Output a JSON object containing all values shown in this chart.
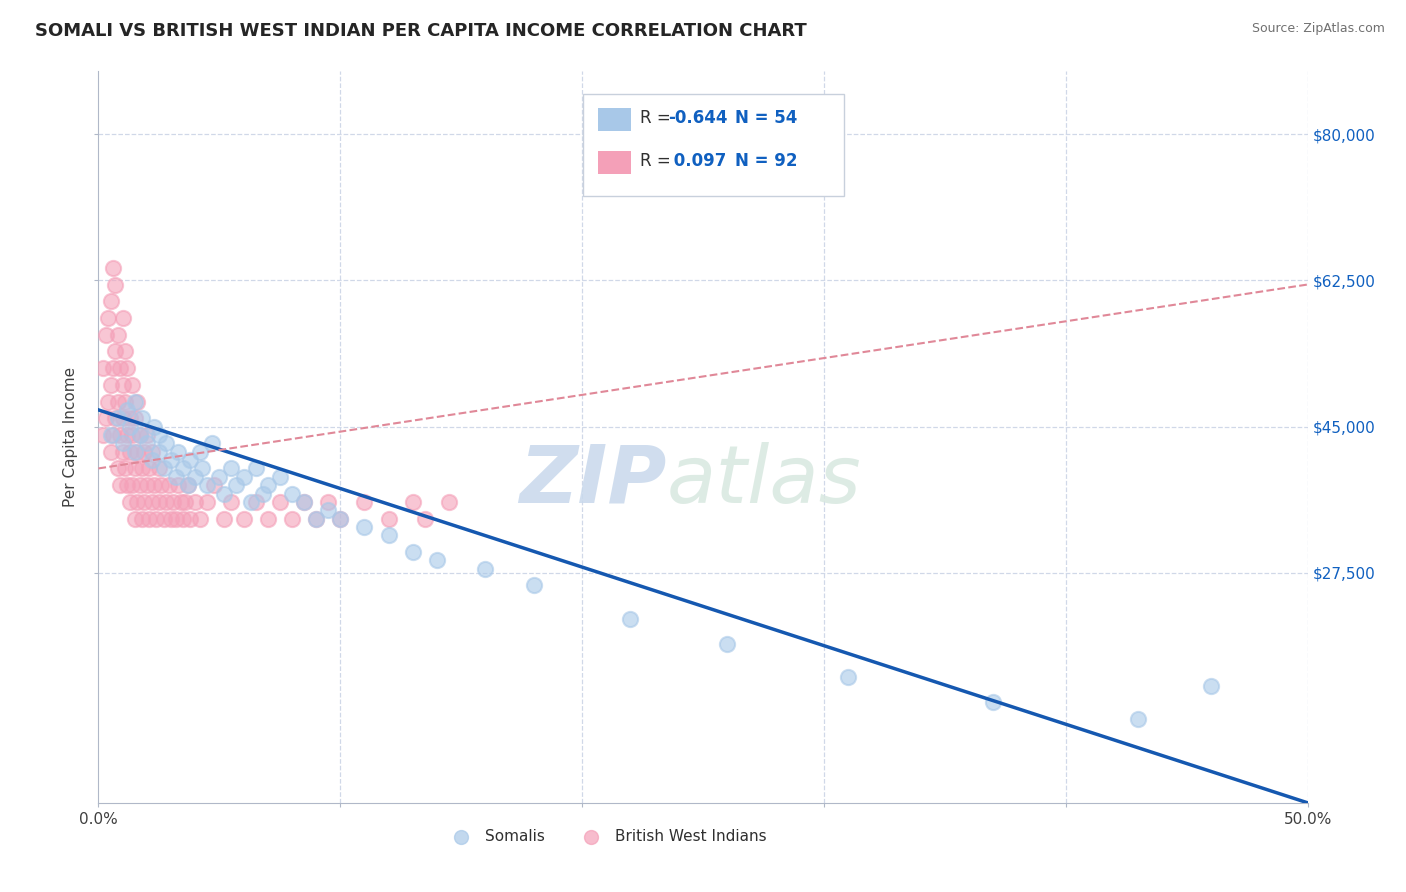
{
  "title": "SOMALI VS BRITISH WEST INDIAN PER CAPITA INCOME CORRELATION CHART",
  "source_text": "Source: ZipAtlas.com",
  "ylabel": "Per Capita Income",
  "xlim": [
    0.0,
    0.5
  ],
  "ylim": [
    0,
    87500
  ],
  "yticks": [
    27500,
    45000,
    62500,
    80000
  ],
  "ytick_labels": [
    "$27,500",
    "$45,000",
    "$62,500",
    "$80,000"
  ],
  "xticks": [
    0.0,
    0.1,
    0.2,
    0.3,
    0.4,
    0.5
  ],
  "xtick_labels": [
    "0.0%",
    "",
    "",
    "",
    "",
    "50.0%"
  ],
  "somali_color": "#a8c8e8",
  "bwi_color": "#f4a0b8",
  "somali_line_color": "#1558b0",
  "bwi_line_color": "#e08898",
  "watermark_zip": "ZIP",
  "watermark_atlas": "atlas",
  "background_color": "#ffffff",
  "grid_color": "#d0d8e8",
  "somali_x": [
    0.005,
    0.008,
    0.01,
    0.012,
    0.013,
    0.015,
    0.015,
    0.017,
    0.018,
    0.02,
    0.022,
    0.023,
    0.025,
    0.025,
    0.027,
    0.028,
    0.03,
    0.032,
    0.033,
    0.035,
    0.037,
    0.038,
    0.04,
    0.042,
    0.043,
    0.045,
    0.047,
    0.05,
    0.052,
    0.055,
    0.057,
    0.06,
    0.063,
    0.065,
    0.068,
    0.07,
    0.075,
    0.08,
    0.085,
    0.09,
    0.095,
    0.1,
    0.11,
    0.12,
    0.13,
    0.14,
    0.16,
    0.18,
    0.22,
    0.26,
    0.31,
    0.37,
    0.43,
    0.46
  ],
  "somali_y": [
    44000,
    46000,
    43000,
    47000,
    45000,
    42000,
    48000,
    44000,
    46000,
    43000,
    41000,
    45000,
    42000,
    44000,
    40000,
    43000,
    41000,
    39000,
    42000,
    40000,
    38000,
    41000,
    39000,
    42000,
    40000,
    38000,
    43000,
    39000,
    37000,
    40000,
    38000,
    39000,
    36000,
    40000,
    37000,
    38000,
    39000,
    37000,
    36000,
    34000,
    35000,
    34000,
    33000,
    32000,
    30000,
    29000,
    28000,
    26000,
    22000,
    19000,
    15000,
    12000,
    10000,
    14000
  ],
  "bwi_x": [
    0.002,
    0.002,
    0.003,
    0.003,
    0.004,
    0.004,
    0.005,
    0.005,
    0.005,
    0.006,
    0.006,
    0.006,
    0.007,
    0.007,
    0.007,
    0.008,
    0.008,
    0.008,
    0.009,
    0.009,
    0.009,
    0.01,
    0.01,
    0.01,
    0.01,
    0.011,
    0.011,
    0.011,
    0.012,
    0.012,
    0.012,
    0.013,
    0.013,
    0.013,
    0.014,
    0.014,
    0.014,
    0.015,
    0.015,
    0.015,
    0.016,
    0.016,
    0.016,
    0.017,
    0.017,
    0.018,
    0.018,
    0.019,
    0.019,
    0.02,
    0.02,
    0.021,
    0.021,
    0.022,
    0.022,
    0.023,
    0.024,
    0.025,
    0.025,
    0.026,
    0.027,
    0.028,
    0.029,
    0.03,
    0.031,
    0.032,
    0.033,
    0.034,
    0.035,
    0.036,
    0.037,
    0.038,
    0.04,
    0.042,
    0.045,
    0.048,
    0.052,
    0.055,
    0.06,
    0.065,
    0.07,
    0.075,
    0.08,
    0.085,
    0.09,
    0.095,
    0.1,
    0.11,
    0.12,
    0.13,
    0.135,
    0.145
  ],
  "bwi_y": [
    44000,
    52000,
    46000,
    56000,
    48000,
    58000,
    50000,
    60000,
    42000,
    52000,
    64000,
    44000,
    54000,
    46000,
    62000,
    48000,
    40000,
    56000,
    44000,
    52000,
    38000,
    50000,
    58000,
    42000,
    46000,
    48000,
    54000,
    40000,
    44000,
    52000,
    38000,
    46000,
    42000,
    36000,
    44000,
    38000,
    50000,
    40000,
    46000,
    34000,
    42000,
    36000,
    48000,
    38000,
    44000,
    40000,
    34000,
    42000,
    36000,
    44000,
    38000,
    40000,
    34000,
    42000,
    36000,
    38000,
    34000,
    40000,
    36000,
    38000,
    34000,
    36000,
    38000,
    34000,
    36000,
    34000,
    38000,
    36000,
    34000,
    36000,
    38000,
    34000,
    36000,
    34000,
    36000,
    38000,
    34000,
    36000,
    34000,
    36000,
    34000,
    36000,
    34000,
    36000,
    34000,
    36000,
    34000,
    36000,
    34000,
    36000,
    34000,
    36000
  ],
  "somali_trend_x": [
    0.0,
    0.5
  ],
  "somali_trend_y": [
    47000,
    0
  ],
  "bwi_trend_x": [
    0.0,
    0.5
  ],
  "bwi_trend_y": [
    40000,
    62000
  ]
}
